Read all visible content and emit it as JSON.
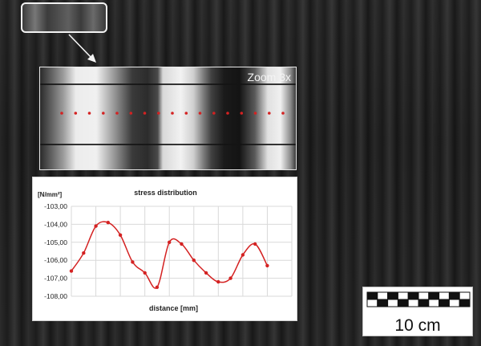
{
  "zoom": {
    "label": "Zoom 3x"
  },
  "scale": {
    "label": "10 cm",
    "segments": 10
  },
  "colors": {
    "series": "#d42222",
    "frame": "#f2f2f2"
  },
  "chart_data": {
    "type": "line",
    "title": "stress distribution",
    "ylabel": "[N/mm²]",
    "xlabel": "distance [mm]",
    "ylim": [
      -108,
      -103
    ],
    "yticks": [
      "-103,00",
      "-104,00",
      "-105,00",
      "-106,00",
      "-107,00",
      "-108,00"
    ],
    "x_categories": 9,
    "grid": true,
    "series": [
      {
        "x": [
          0,
          0.5,
          1,
          1.5,
          2,
          2.5,
          3,
          3.5,
          4,
          4.5,
          5,
          5.5,
          6,
          6.5,
          7,
          7.5,
          8,
          8.5,
          9
        ],
        "values": [
          -106.6,
          -105.6,
          -104.1,
          -103.9,
          -104.6,
          -106.1,
          -106.7,
          -107.5,
          -105.0,
          -105.1,
          -106.0,
          -106.7,
          -107.2,
          -107.0,
          -105.7,
          -105.1,
          -106.3,
          null,
          null
        ]
      }
    ]
  }
}
